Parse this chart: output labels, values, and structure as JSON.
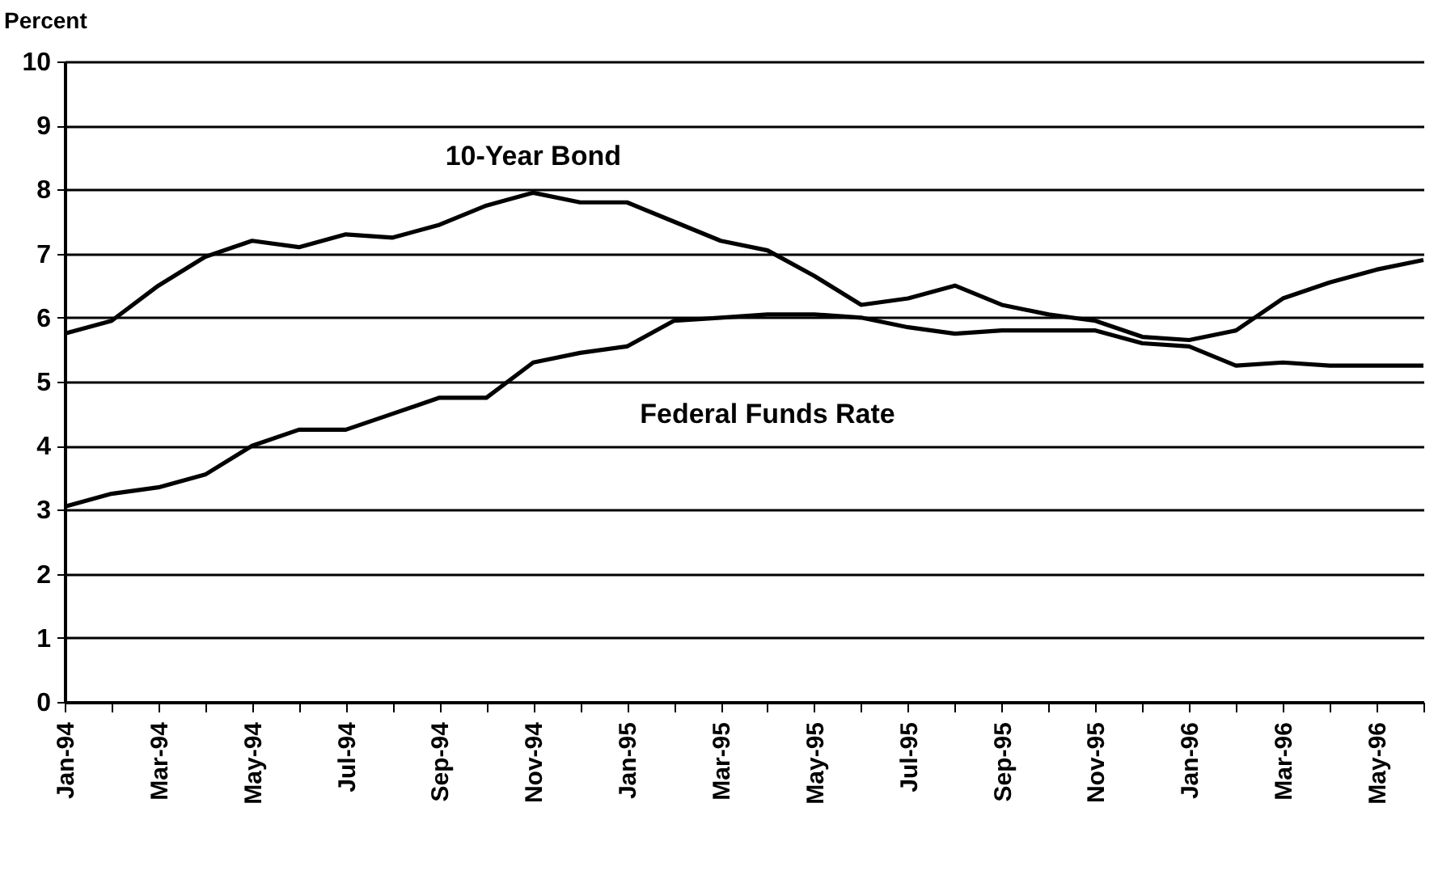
{
  "chart_data": {
    "type": "line",
    "ylabel": "Percent",
    "categories": [
      "Jan-94",
      null,
      "Mar-94",
      null,
      "May-94",
      null,
      "Jul-94",
      null,
      "Sep-94",
      null,
      "Nov-94",
      null,
      "Jan-95",
      null,
      "Mar-95",
      null,
      "May-95",
      null,
      "Jul-95",
      null,
      "Sep-95",
      null,
      "Nov-95",
      null,
      "Jan-96",
      null,
      "Mar-96",
      null,
      "May-96",
      null
    ],
    "series": [
      {
        "name": "10-Year Bond",
        "color": "#000000",
        "values": [
          5.75,
          5.95,
          6.5,
          6.95,
          7.2,
          7.1,
          7.3,
          7.25,
          7.45,
          7.75,
          7.95,
          7.8,
          7.8,
          7.5,
          7.2,
          7.05,
          6.65,
          6.2,
          6.3,
          6.5,
          6.2,
          6.05,
          5.95,
          5.7,
          5.65,
          5.8,
          6.3,
          6.55,
          6.75,
          6.9
        ]
      },
      {
        "name": "Federal Funds Rate",
        "color": "#000000",
        "values": [
          3.05,
          3.25,
          3.35,
          3.55,
          4.0,
          4.25,
          4.25,
          4.5,
          4.75,
          4.75,
          5.3,
          5.45,
          5.55,
          5.95,
          6.0,
          6.05,
          6.05,
          6.0,
          5.85,
          5.75,
          5.8,
          5.8,
          5.8,
          5.6,
          5.55,
          5.25,
          5.3,
          5.25,
          5.25,
          5.25
        ]
      }
    ],
    "ylim": [
      0,
      10
    ],
    "yticks": [
      0,
      1,
      2,
      3,
      4,
      5,
      6,
      7,
      8,
      9,
      10
    ],
    "grid": "y",
    "legend": false,
    "marker": "none",
    "line_style": "solid"
  }
}
